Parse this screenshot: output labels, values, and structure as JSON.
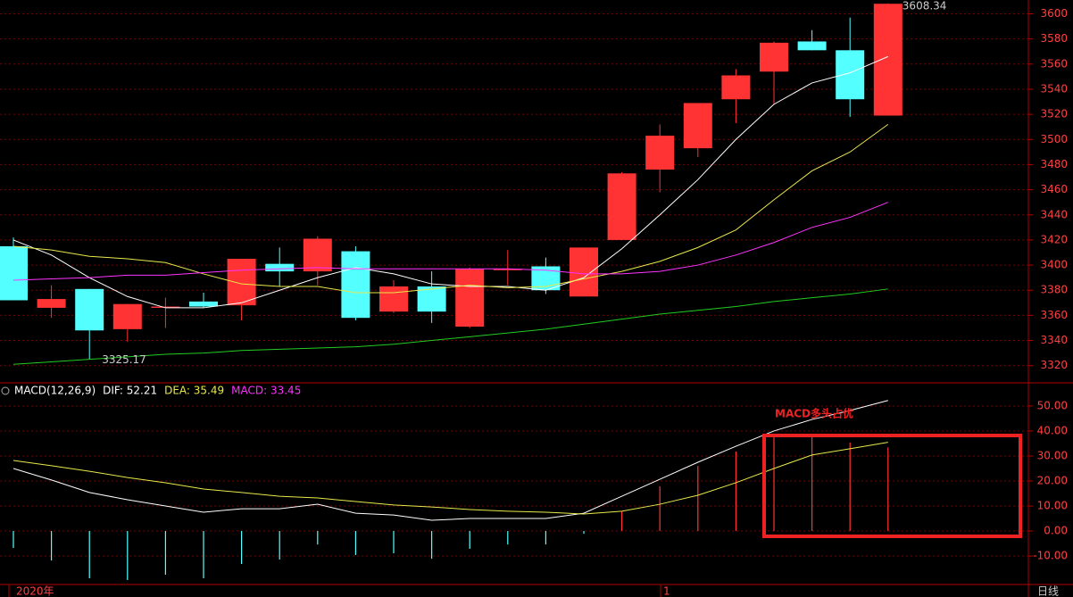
{
  "chart_data": [
    {
      "type": "candlestick",
      "open": [
        3415,
        3366,
        3381,
        3349,
        3366,
        3371,
        3368,
        3401,
        3395,
        3411,
        3363,
        3383,
        3351,
        3396,
        3399,
        3375,
        3420,
        3476,
        3493,
        3532,
        3554,
        3578,
        3571,
        3519
      ],
      "close": [
        3372,
        3373,
        3348,
        3369,
        3367,
        3367,
        3405,
        3395,
        3421,
        3358,
        3383,
        3363,
        3397,
        3397,
        3380,
        3414,
        3473,
        3503,
        3529,
        3551,
        3577,
        3571,
        3532,
        3608
      ],
      "high": [
        3422,
        3384,
        3381,
        3369,
        3374,
        3378,
        3405,
        3414,
        3423,
        3415,
        3388,
        3395,
        3398,
        3412,
        3406,
        3414,
        3474,
        3512,
        3529,
        3556,
        3578,
        3587,
        3597,
        3608.34
      ],
      "low": [
        3372,
        3358,
        3325.17,
        3339,
        3350,
        3366,
        3356,
        3383,
        3384,
        3356,
        3362,
        3354,
        3350,
        3384,
        3377,
        3375,
        3420,
        3458,
        3486,
        3513,
        3528,
        3571,
        3518,
        3519
      ],
      "up_color": "#ff3333",
      "down_color": "#54ffff",
      "series": [
        {
          "color": "#ffffff",
          "values": [
            3420,
            3408,
            3390,
            3375,
            3366,
            3366,
            3370,
            3380,
            3390,
            3398,
            3393,
            3385,
            3383,
            3383,
            3380,
            3390,
            3413,
            3440,
            3468,
            3500,
            3528,
            3545,
            3553,
            3566
          ]
        },
        {
          "color": "#e8e84a",
          "values": [
            3415,
            3412,
            3407,
            3405,
            3402,
            3393,
            3385,
            3383,
            3383,
            3378,
            3378,
            3381,
            3384,
            3382,
            3383,
            3389,
            3395,
            3403,
            3414,
            3428,
            3452,
            3475,
            3490,
            3512
          ]
        },
        {
          "color": "#ff33ff",
          "values": [
            3388,
            3389,
            3390,
            3392,
            3392,
            3394,
            3396,
            3397,
            3398,
            3397,
            3397,
            3397,
            3397,
            3397,
            3396,
            3393,
            3393,
            3395,
            3400,
            3408,
            3418,
            3430,
            3438,
            3450
          ]
        },
        {
          "color": "#22cc22",
          "values": [
            3321,
            3323,
            3325,
            3327,
            3329,
            3330,
            3332,
            3333,
            3334,
            3335,
            3337,
            3340,
            3343,
            3346,
            3349,
            3353,
            3357,
            3361,
            3364,
            3367,
            3371,
            3374,
            3377,
            3381
          ]
        }
      ],
      "high_label": 3608.34,
      "low_label": 3325.17,
      "ylim": [
        3307,
        3611
      ],
      "yticks": [
        3320,
        3340,
        3360,
        3380,
        3400,
        3420,
        3440,
        3460,
        3480,
        3500,
        3520,
        3540,
        3560,
        3580,
        3600
      ],
      "grid": true
    },
    {
      "type": "macd",
      "header": [
        {
          "text": "MACD(12,26,9)",
          "color": "#ffffff"
        },
        {
          "text": "DIF: 52.21",
          "color": "#ffffff"
        },
        {
          "text": "DEA: 35.49",
          "color": "#e8e84a"
        },
        {
          "text": "MACD: 33.45",
          "color": "#ff33ff"
        }
      ],
      "series": [
        {
          "color": "#ffffff",
          "values": [
            25,
            20.4,
            15.4,
            12.5,
            10,
            7.5,
            8.9,
            8.9,
            10.7,
            7.1,
            6.4,
            4.3,
            5,
            5,
            5,
            7.1,
            13.9,
            20.7,
            27.5,
            33.9,
            40,
            44.6,
            48.2,
            52.21
          ]
        },
        {
          "color": "#e8e84a",
          "values": [
            28.2,
            26.1,
            23.9,
            21.4,
            19.3,
            16.8,
            15.4,
            13.9,
            13.2,
            11.8,
            10.4,
            9.6,
            8.6,
            7.9,
            7.5,
            6.8,
            7.9,
            10.7,
            14.3,
            19.3,
            25,
            30.4,
            32.9,
            35.49
          ]
        }
      ],
      "histogram": [
        -6.8,
        -11.8,
        -18.9,
        -19.6,
        -17.5,
        -18.9,
        -13.2,
        -11.4,
        -5.4,
        -9.6,
        -8.9,
        -11.1,
        -7.1,
        -5.4,
        -5.4,
        -1.1,
        7.9,
        17.9,
        26,
        31.8,
        37.5,
        37.5,
        35.4,
        33.45
      ],
      "ylim": [
        -21.4,
        58.9
      ],
      "yticks": [
        {
          "value": -10,
          "label": "-10.00"
        },
        {
          "value": 0,
          "label": "0.00"
        },
        {
          "value": 10,
          "label": "10.00"
        },
        {
          "value": 20,
          "label": "20.00"
        },
        {
          "value": 30,
          "label": "30.00"
        },
        {
          "value": 40,
          "label": "40.00"
        },
        {
          "value": 50,
          "label": "50.00"
        }
      ],
      "grid": true,
      "annotation": "MACD多头占优",
      "annotation_color": "#ee2222"
    }
  ],
  "x_axis": {
    "labels": [
      "2020年",
      "1"
    ],
    "period": "日线"
  }
}
